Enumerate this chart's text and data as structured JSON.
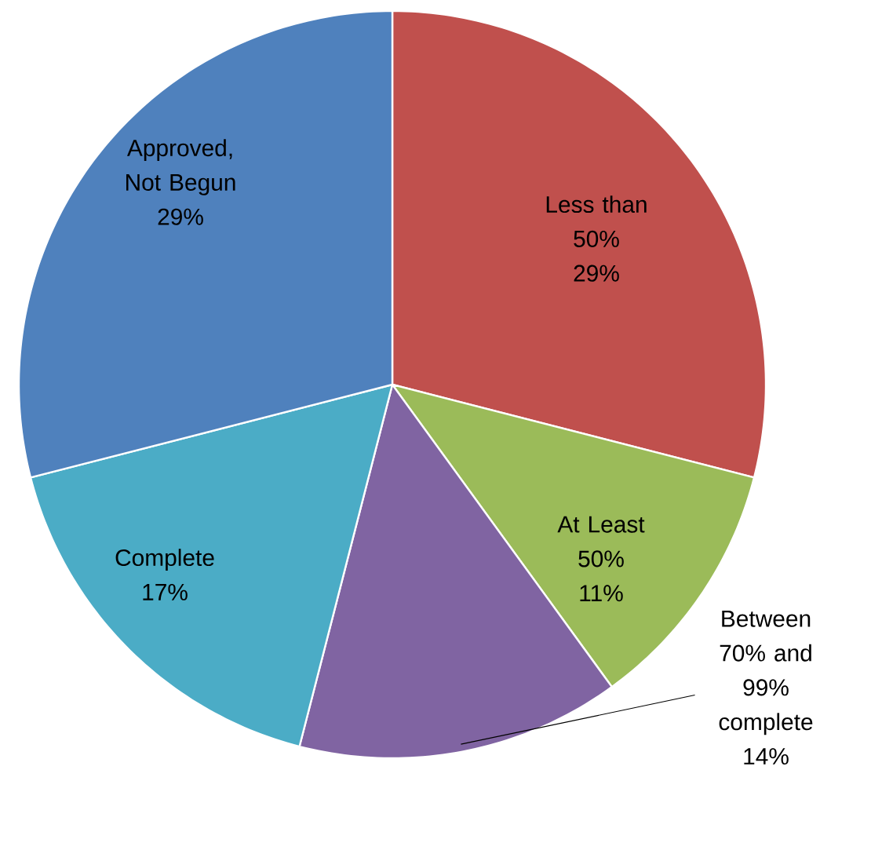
{
  "chart_data": {
    "type": "pie",
    "categories": [
      "Less than 50%",
      "At Least 50%",
      "Between 70% and 99% complete",
      "Complete",
      "Approved, Not Begun"
    ],
    "values": [
      29,
      11,
      14,
      17,
      29
    ],
    "value_labels": [
      "29%",
      "11%",
      "14%",
      "17%",
      "29%"
    ],
    "colors": [
      "#c0504d",
      "#9bbb59",
      "#8064a2",
      "#4bacc6",
      "#4f81bd"
    ]
  }
}
